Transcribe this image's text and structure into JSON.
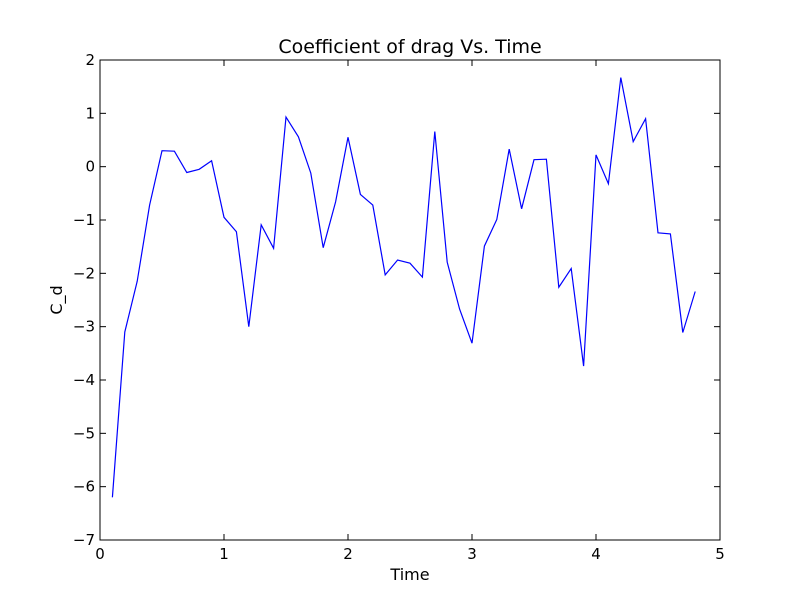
{
  "chart_data": {
    "type": "line",
    "title": "Coefficient of drag Vs. Time",
    "xlabel": "Time",
    "ylabel": "C_d",
    "xlim": [
      0,
      5
    ],
    "ylim": [
      -7,
      2
    ],
    "xticks": [
      0,
      1,
      2,
      3,
      4,
      5
    ],
    "xtick_labels": [
      "0",
      "1",
      "2",
      "3",
      "4",
      "5"
    ],
    "yticks": [
      2,
      1,
      0,
      -1,
      -2,
      -3,
      -4,
      -5,
      -6,
      -7
    ],
    "ytick_labels": [
      "2",
      "1",
      "0",
      "−1",
      "−2",
      "−3",
      "−4",
      "−5",
      "−6",
      "−7"
    ],
    "grid": false,
    "series": [
      {
        "color": "#0000ff",
        "x": [
          0.1,
          0.2,
          0.3,
          0.4,
          0.5,
          0.6,
          0.7,
          0.8,
          0.9,
          1.0,
          1.1,
          1.2,
          1.3,
          1.4,
          1.5,
          1.6,
          1.7,
          1.8,
          1.9,
          2.0,
          2.1,
          2.2,
          2.3,
          2.4,
          2.5,
          2.6,
          2.7,
          2.8,
          2.9,
          3.0,
          3.1,
          3.2,
          3.3,
          3.4,
          3.5,
          3.6,
          3.7,
          3.8,
          3.9,
          4.0,
          4.1,
          4.2,
          4.3,
          4.4,
          4.5,
          4.6,
          4.7,
          4.8
        ],
        "y": [
          -6.2,
          -3.1,
          -2.15,
          -0.72,
          0.3,
          0.29,
          -0.11,
          -0.05,
          0.11,
          -0.95,
          -1.22,
          -3.0,
          -1.09,
          -1.53,
          0.93,
          0.56,
          -0.12,
          -1.52,
          -0.66,
          0.55,
          -0.52,
          -0.72,
          -2.03,
          -1.75,
          -1.81,
          -2.07,
          0.66,
          -1.79,
          -2.67,
          -3.31,
          -1.49,
          -0.99,
          0.33,
          -0.79,
          0.13,
          0.14,
          -2.26,
          -1.91,
          -3.74,
          0.22,
          -0.32,
          1.67,
          0.47,
          0.9,
          -1.24,
          -1.26,
          -3.11,
          -2.34
        ]
      }
    ]
  }
}
